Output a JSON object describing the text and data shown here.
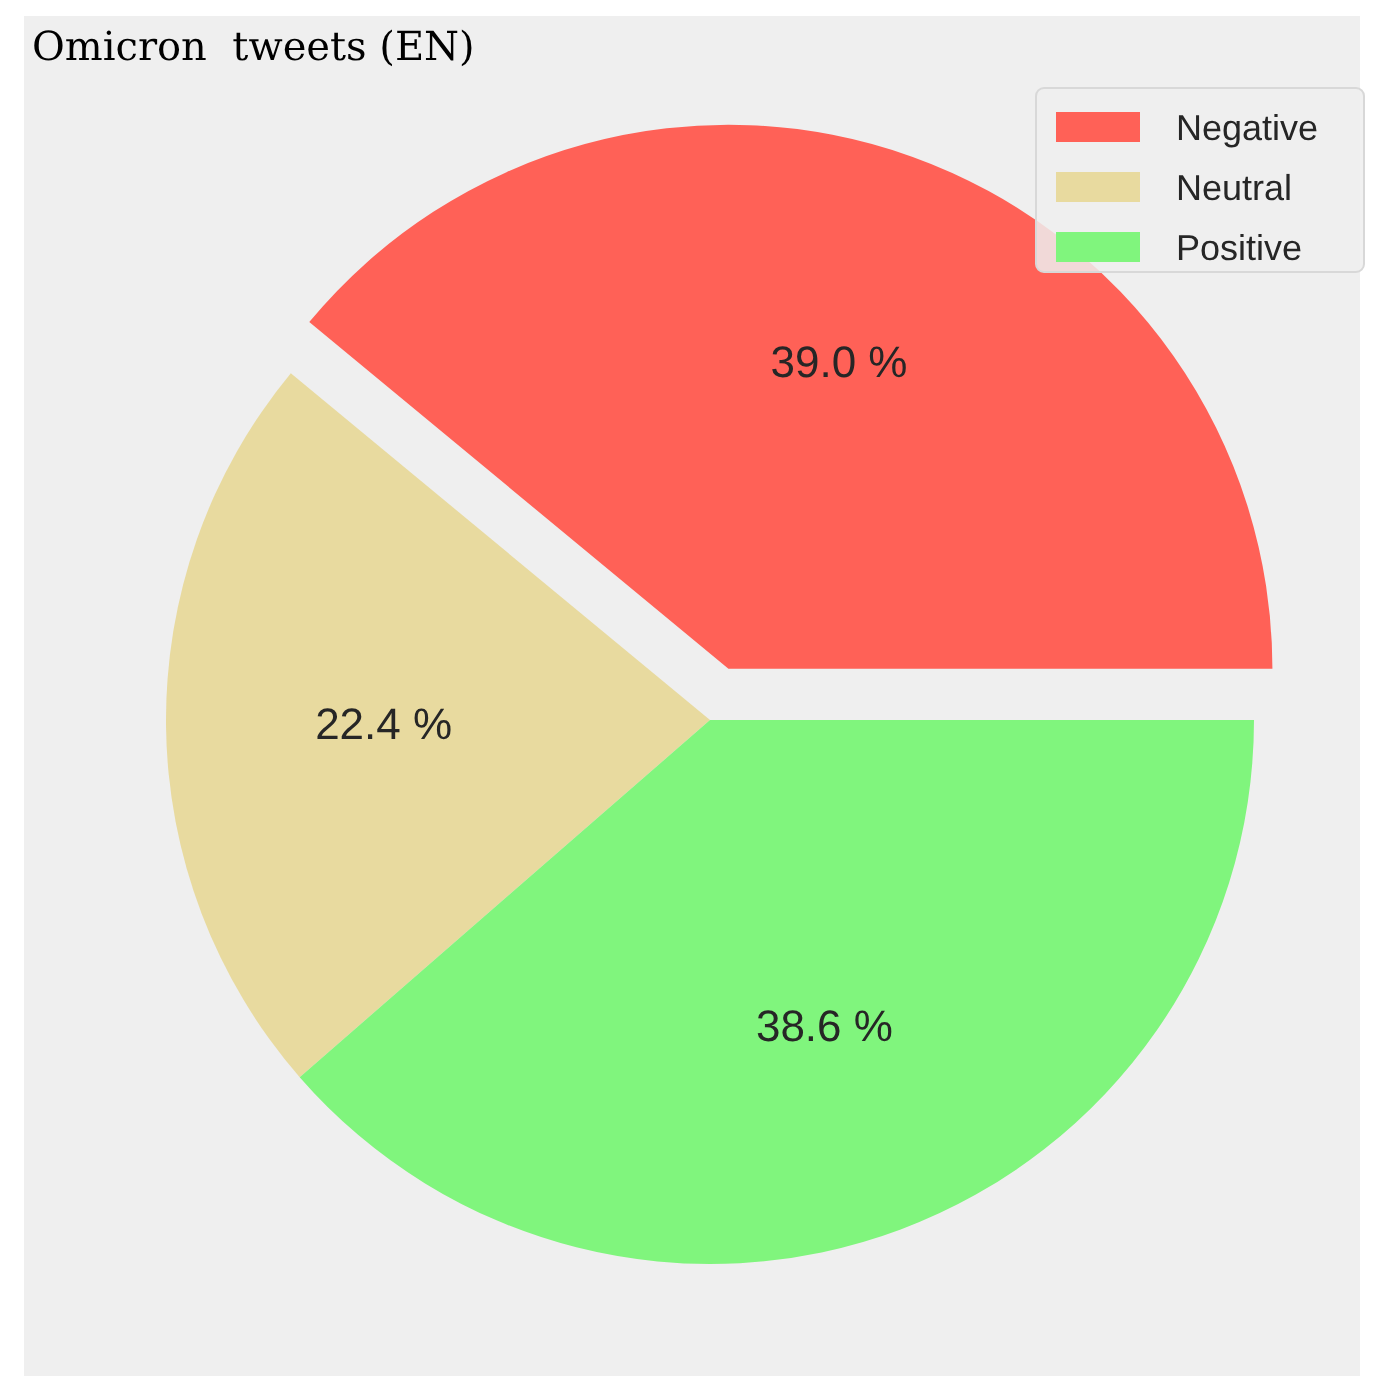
{
  "chart_data": {
    "type": "pie",
    "title": "Omicron  tweets (EN)",
    "categories": [
      "Negative",
      "Neutral",
      "Positive"
    ],
    "values": [
      39.0,
      22.4,
      38.6
    ],
    "colors": [
      "#ff6157",
      "#e8da9f",
      "#80f57d"
    ],
    "value_labels": [
      "39.0 %",
      "22.4 %",
      "38.6 %"
    ],
    "legend": "top right"
  }
}
